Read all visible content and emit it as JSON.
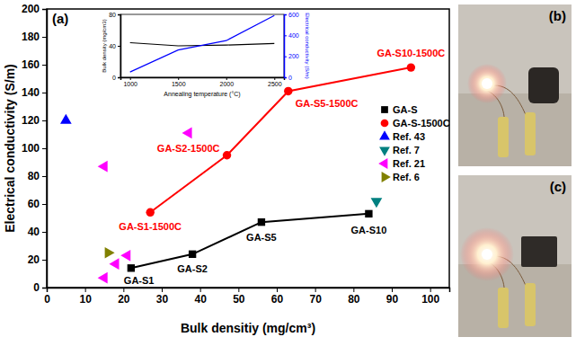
{
  "chart_data": [
    {
      "type": "scatter",
      "panel_label": "(a)",
      "x_label": "Bulk densitiy (mg/cm³)",
      "y_label": "Electrical conductivity (S/m)",
      "xlim": [
        0,
        105
      ],
      "xticks": [
        0,
        10,
        20,
        30,
        40,
        50,
        60,
        70,
        80,
        90,
        100
      ],
      "ylim": [
        0,
        200
      ],
      "yticks": [
        0,
        20,
        40,
        60,
        80,
        100,
        120,
        140,
        160,
        180,
        200
      ],
      "legend": "right",
      "series": [
        {
          "name": "GA-S",
          "color": "#000000",
          "marker": "square",
          "line_style": "solid",
          "x": [
            22,
            38,
            56,
            84
          ],
          "values": [
            14,
            24,
            47,
            53
          ],
          "point_labels": [
            "GA-S1",
            "GA-S2",
            "GA-S5",
            "GA-S10"
          ]
        },
        {
          "name": "GA-S-1500C",
          "color": "#ff0000",
          "marker": "circle",
          "line_style": "solid",
          "x": [
            27,
            47,
            63,
            95
          ],
          "values": [
            54,
            95,
            141,
            158
          ],
          "point_labels": [
            "GA-S1-1500C",
            "GA-S2-1500C",
            "GA-S5-1500C",
            "GA-S10-1500C"
          ]
        },
        {
          "name": "Ref. 43",
          "color": "#0000ff",
          "marker": "triangle-up",
          "line_style": "none",
          "x": [
            5
          ],
          "values": [
            120
          ]
        },
        {
          "name": "Ref. 7",
          "color": "#008080",
          "marker": "triangle-down",
          "line_style": "none",
          "x": [
            86
          ],
          "values": [
            62
          ]
        },
        {
          "name": "Ref. 21",
          "color": "#ff00ff",
          "marker": "triangle-left",
          "line_style": "none",
          "x": [
            15,
            37,
            15,
            18,
            21
          ],
          "values": [
            87,
            111,
            7,
            17,
            23
          ]
        },
        {
          "name": "Ref. 6",
          "color": "#808000",
          "marker": "triangle-right",
          "line_style": "none",
          "x": [
            16
          ],
          "values": [
            25
          ]
        }
      ]
    },
    {
      "type": "line",
      "x_label": "Annealing temperature (°C)",
      "y_label": "Bulk density (mg/cm3)",
      "y2_label": "Electrical conductivity (S/m)",
      "x": [
        1000,
        1500,
        2000,
        2500
      ],
      "xlim": [
        900,
        2600
      ],
      "xticks": [
        1000,
        1500,
        2000,
        2500
      ],
      "ylim": [
        0,
        80
      ],
      "yticks": [
        0,
        40,
        80
      ],
      "y2lim": [
        0,
        600
      ],
      "y2ticks": [
        0,
        200,
        400,
        600
      ],
      "series": [
        {
          "color": "#000000",
          "values": [
            44,
            40,
            41,
            43
          ]
        },
        {
          "color": "#0000ff",
          "axis": "y2",
          "values": [
            50,
            260,
            350,
            590
          ]
        }
      ]
    }
  ],
  "photos": [
    {
      "label": "(b)"
    },
    {
      "label": "(c)"
    }
  ]
}
